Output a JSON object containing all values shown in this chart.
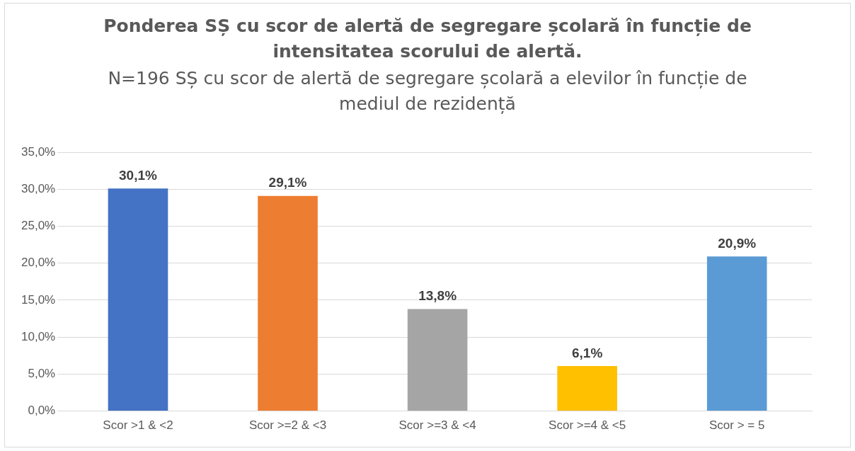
{
  "chart_data": {
    "type": "bar",
    "title": "Ponderea SȘ cu scor de alertă de segregare școlară în funcție de intensitatea scorului de alertă.",
    "subtitle": "N=196 SȘ cu scor de alertă de segregare școlară a elevilor în funcție de mediul de rezidență",
    "categories": [
      "Scor >1 & <2",
      "Scor >=2 & <3",
      "Scor >=3 & <4",
      "Scor >=4 & <5",
      "Scor > = 5"
    ],
    "values": [
      30.1,
      29.1,
      13.8,
      6.1,
      20.9
    ],
    "colors": [
      "#4472c4",
      "#ed7d31",
      "#a5a5a5",
      "#ffc000",
      "#5b9bd5"
    ],
    "value_labels": [
      "30,1%",
      "29,1%",
      "13,8%",
      "6,1%",
      "20,9%"
    ],
    "ylim": [
      0,
      35
    ],
    "yticks": [
      {
        "value": 0,
        "label": "0,0%"
      },
      {
        "value": 5,
        "label": "5,0%"
      },
      {
        "value": 10,
        "label": "10,0%"
      },
      {
        "value": 15,
        "label": "15,0%"
      },
      {
        "value": 20,
        "label": "20,0%"
      },
      {
        "value": 25,
        "label": "25,0%"
      },
      {
        "value": 30,
        "label": "30,0%"
      },
      {
        "value": 35,
        "label": "35,0%"
      }
    ],
    "grid": "y",
    "legend": false
  }
}
